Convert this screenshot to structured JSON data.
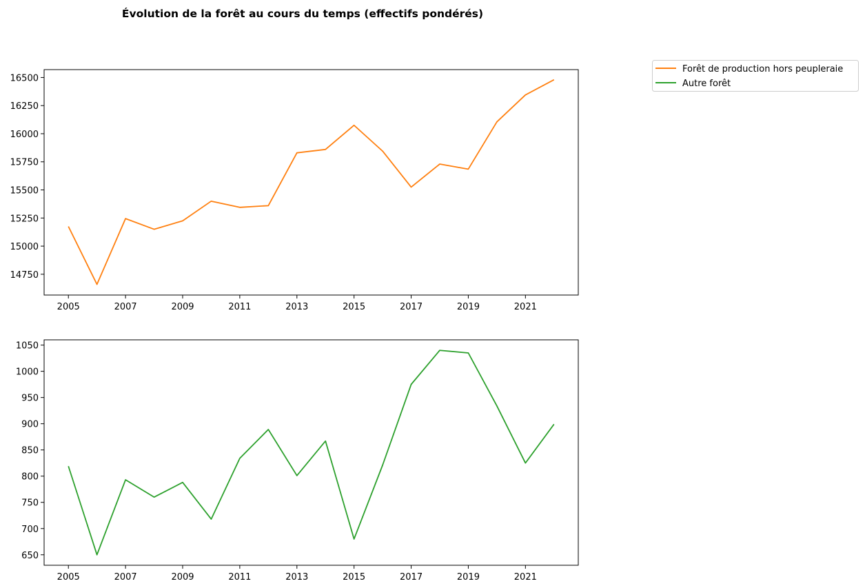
{
  "figure": {
    "title": "Évolution de la forêt au cours du temps (effectifs pondérés)"
  },
  "legend": {
    "placement": "upper right, outside plots",
    "entries": [
      {
        "label": "Forêt de production hors peupleraie",
        "color": "#ff7f0e"
      },
      {
        "label": "Autre forêt",
        "color": "#2ca02c"
      }
    ]
  },
  "chart_data": [
    {
      "type": "line",
      "title": "",
      "xlabel": "",
      "ylabel": "",
      "grid": false,
      "xlim": [
        2004.15,
        2022.85
      ],
      "ylim": [
        14565,
        16570
      ],
      "xticks": [
        2005,
        2007,
        2009,
        2011,
        2013,
        2015,
        2017,
        2019,
        2021
      ],
      "yticks": [
        14750,
        15000,
        15250,
        15500,
        15750,
        16000,
        16250,
        16500
      ],
      "series": [
        {
          "name": "Forêt de production hors peupleraie",
          "color": "#ff7f0e",
          "x": [
            2005,
            2006,
            2007,
            2008,
            2009,
            2010,
            2011,
            2012,
            2013,
            2014,
            2015,
            2016,
            2017,
            2018,
            2019,
            2020,
            2021,
            2022
          ],
          "y": [
            15175,
            14660,
            15245,
            15150,
            15225,
            15400,
            15345,
            15360,
            15830,
            15860,
            16075,
            15845,
            15525,
            15730,
            15685,
            16105,
            16345,
            16480
          ]
        }
      ]
    },
    {
      "type": "line",
      "title": "",
      "xlabel": "",
      "ylabel": "",
      "grid": false,
      "xlim": [
        2004.15,
        2022.85
      ],
      "ylim": [
        630,
        1060
      ],
      "xticks": [
        2005,
        2007,
        2009,
        2011,
        2013,
        2015,
        2017,
        2019,
        2021
      ],
      "yticks": [
        650,
        700,
        750,
        800,
        850,
        900,
        950,
        1000,
        1050
      ],
      "series": [
        {
          "name": "Autre forêt",
          "color": "#2ca02c",
          "x": [
            2005,
            2006,
            2007,
            2008,
            2009,
            2010,
            2011,
            2012,
            2013,
            2014,
            2015,
            2016,
            2017,
            2018,
            2019,
            2020,
            2021,
            2022
          ],
          "y": [
            819,
            650,
            793,
            760,
            788,
            718,
            834,
            889,
            801,
            867,
            680,
            821,
            975,
            1040,
            1035,
            934,
            825,
            899
          ]
        }
      ]
    }
  ]
}
